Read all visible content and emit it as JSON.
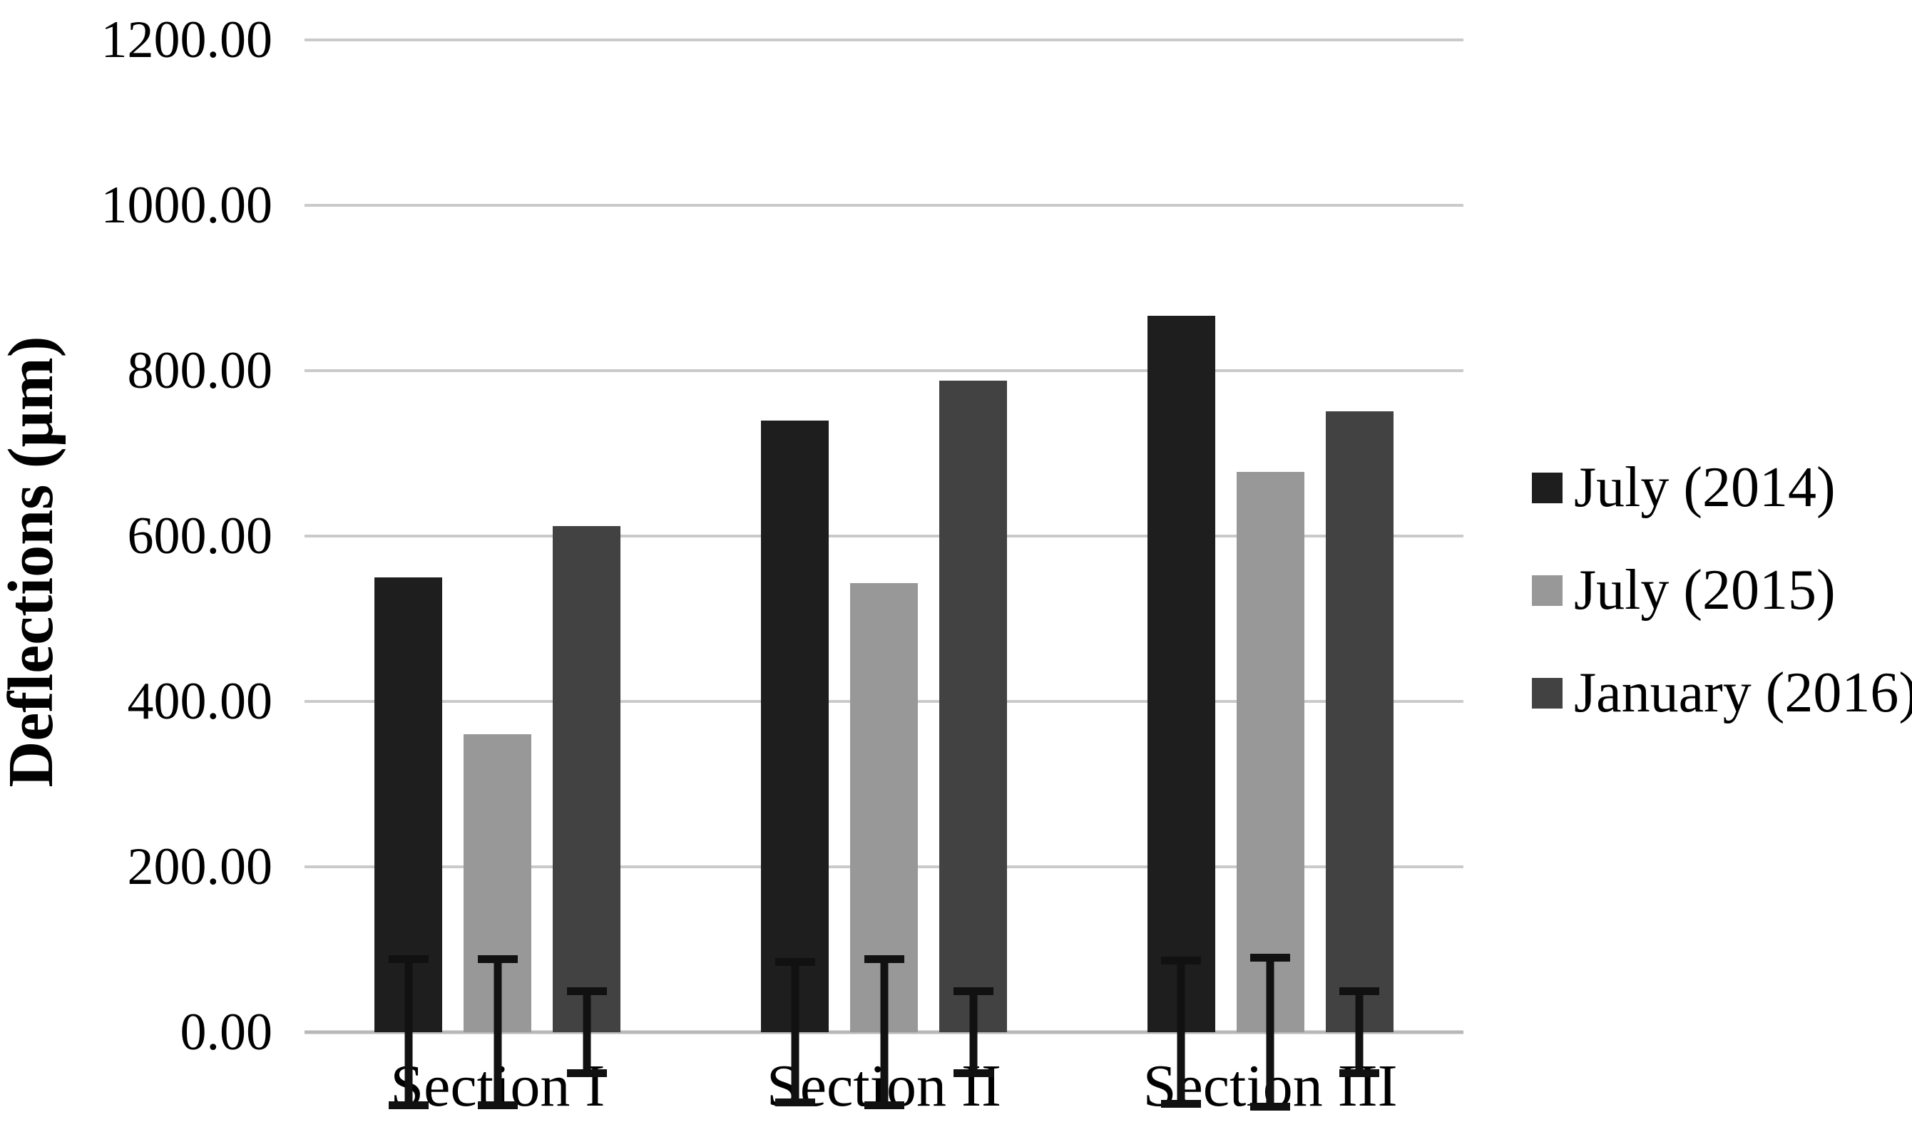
{
  "chart_data": {
    "type": "bar",
    "title": "",
    "xlabel": "",
    "ylabel": "Deflections (μm)",
    "ylim": [
      0,
      1200
    ],
    "ytick_step": 200,
    "yticks": [
      0,
      200,
      400,
      600,
      800,
      1000,
      1200
    ],
    "ytick_labels": [
      "0.00",
      "200.00",
      "400.00",
      "600.00",
      "800.00",
      "1000.00",
      "1200.00"
    ],
    "grid": true,
    "error_bars": true,
    "legend_position": "right",
    "categories": [
      "Section I",
      "Section II",
      "Section III"
    ],
    "series": [
      {
        "name": "July (2014)",
        "color": "#1e1e1e",
        "values": [
          550,
          740,
          866
        ],
        "errors": [
          93,
          90,
          91
        ]
      },
      {
        "name": "July (2015)",
        "color": "#989898",
        "values": [
          360,
          543,
          678
        ],
        "errors": [
          93,
          93,
          95
        ]
      },
      {
        "name": "January (2016)",
        "color": "#424242",
        "values": [
          612,
          788,
          751
        ],
        "errors": [
          54,
          54,
          54
        ]
      }
    ]
  },
  "style_colors": {
    "gridline": "#cacaca",
    "axis_line": "#b8b8b8",
    "error_bar": "#111111",
    "text": "#000000",
    "background": "#ffffff"
  }
}
